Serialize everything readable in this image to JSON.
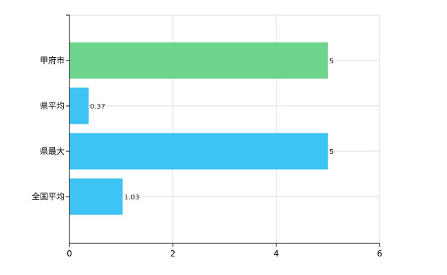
{
  "chart_data": {
    "type": "bar",
    "orientation": "horizontal",
    "categories": [
      "甲府市",
      "県平均",
      "県最大",
      "全国平均"
    ],
    "values": [
      5,
      0.37,
      5,
      1.03
    ],
    "value_labels": [
      "5",
      "0.37",
      "5",
      "1.03"
    ],
    "bar_colors": [
      "#6cd48b",
      "#3ec3f5",
      "#3ec3f5",
      "#3ec3f5"
    ],
    "xlim": [
      0,
      6
    ],
    "x_ticks": [
      0,
      2,
      4,
      6
    ],
    "grid": true,
    "title": "",
    "xlabel": "",
    "ylabel": ""
  }
}
